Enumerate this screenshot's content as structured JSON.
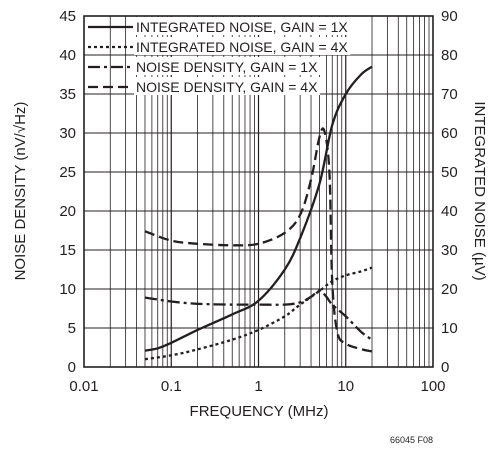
{
  "chart_data": {
    "type": "line",
    "xlabel": "FREQUENCY (MHz)",
    "ylabel_left": "NOISE DENSITY (nV/√Hz)",
    "ylabel_right": "INTEGRATED NOISE (µV)",
    "x_scale": "log",
    "xlim": [
      0.01,
      100
    ],
    "ylim_left": [
      0,
      45
    ],
    "ylim_right": [
      0,
      90
    ],
    "grid": true,
    "legend_position": "top",
    "x_tick_labels": [
      "0.01",
      "0.1",
      "1",
      "10",
      "100"
    ],
    "y_left_tick_labels": [
      "0",
      "5",
      "10",
      "15",
      "20",
      "25",
      "30",
      "35",
      "40",
      "45"
    ],
    "y_right_tick_labels": [
      "0",
      "10",
      "20",
      "30",
      "40",
      "50",
      "60",
      "70",
      "80",
      "90"
    ],
    "footnote": "66045 F08",
    "series": [
      {
        "name": "INTEGRATED NOISE, GAIN = 1X",
        "axis": "right",
        "dash": "solid",
        "x": [
          0.05,
          0.07,
          0.1,
          0.2,
          0.5,
          1,
          2,
          3,
          5,
          7,
          10,
          15,
          20
        ],
        "y": [
          4.2,
          4.8,
          6.2,
          9.5,
          13.5,
          17,
          25,
          33,
          47,
          62,
          70,
          75,
          77
        ]
      },
      {
        "name": "INTEGRATED NOISE, GAIN = 4X",
        "axis": "right",
        "dash": "dotted",
        "x": [
          0.05,
          0.1,
          0.2,
          0.5,
          1,
          2,
          3,
          5,
          7,
          10,
          15,
          20
        ],
        "y": [
          2,
          3,
          4.5,
          7,
          9.5,
          13,
          16,
          19.5,
          22,
          23.5,
          24.5,
          25.5
        ]
      },
      {
        "name": "NOISE DENSITY, GAIN = 1X",
        "axis": "left",
        "dash": "dashdot",
        "x": [
          0.05,
          0.1,
          0.2,
          0.5,
          1,
          2,
          3,
          4,
          5,
          6,
          7,
          10,
          15,
          20
        ],
        "y": [
          8.9,
          8.4,
          8.1,
          8,
          8,
          8,
          8.3,
          9,
          9.8,
          9,
          8,
          6.5,
          4.5,
          3.5
        ]
      },
      {
        "name": "NOISE DENSITY, GAIN = 4X",
        "axis": "left",
        "dash": "dashed",
        "x": [
          0.05,
          0.1,
          0.2,
          0.5,
          1,
          2,
          3,
          4,
          5,
          5.7,
          6.5,
          7,
          8,
          10,
          15,
          20
        ],
        "y": [
          17.4,
          16.2,
          15.8,
          15.6,
          15.8,
          17.2,
          19.5,
          24,
          29.5,
          30.2,
          25,
          11,
          4.5,
          3,
          2.3,
          2
        ]
      }
    ]
  }
}
